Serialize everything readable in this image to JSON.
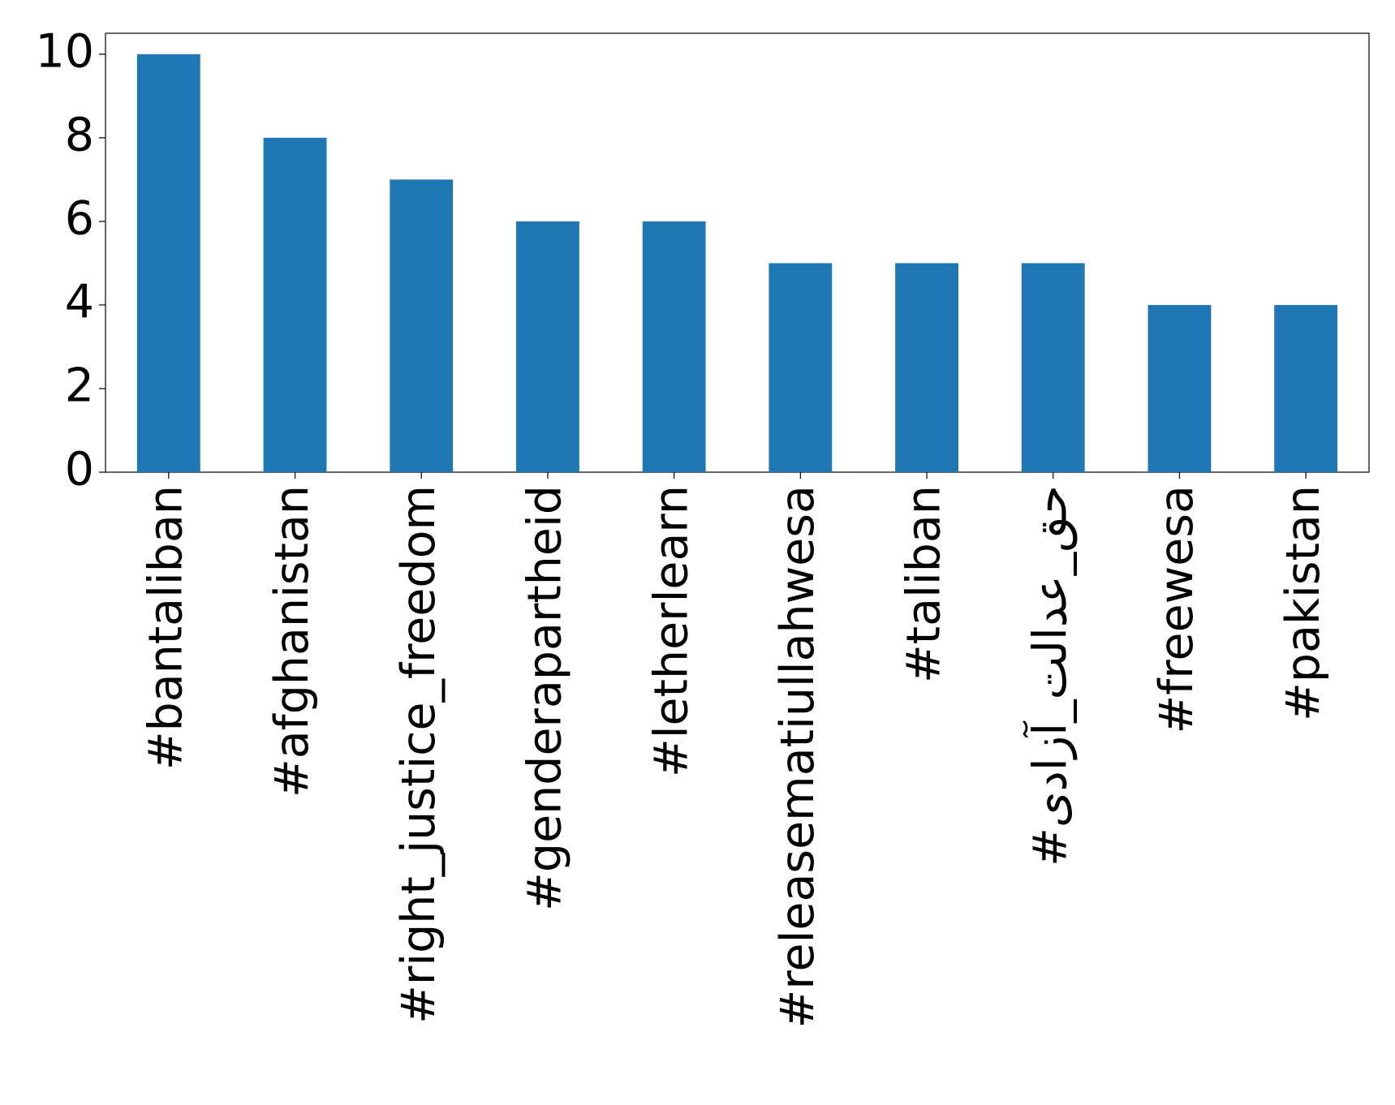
{
  "chart_data": {
    "type": "bar",
    "categories": [
      "#bantaliban",
      "#afghanistan",
      "#right_justice_freedom",
      "#genderapartheid",
      "#letherlearn",
      "#releasematiullahwesa",
      "#taliban",
      "#حق_عدالت_آزادی",
      "#freewesa",
      "#pakistan"
    ],
    "values": [
      10,
      8,
      7,
      6,
      6,
      5,
      5,
      5,
      4,
      4
    ],
    "color": "#1f77b4",
    "ylim": [
      0,
      10.5
    ],
    "yticks": [
      0,
      2,
      4,
      6,
      8,
      10
    ],
    "grid": false
  }
}
